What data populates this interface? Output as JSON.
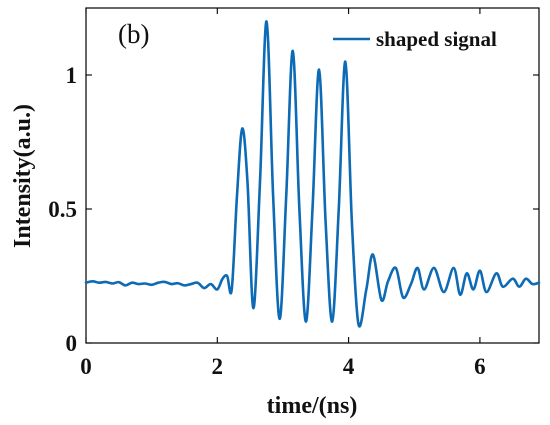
{
  "chart_data": {
    "type": "line",
    "panel_label": "(b)",
    "xlabel": "time/(ns)",
    "ylabel": "Intensity(a.u.)",
    "xlim": [
      0,
      6.9
    ],
    "ylim": [
      0,
      1.25
    ],
    "xticks": [
      0,
      2,
      4,
      6
    ],
    "yticks": [
      0,
      0.5,
      1
    ],
    "xtick_labels": [
      "0",
      "2",
      "4",
      "6"
    ],
    "ytick_labels": [
      "0",
      "0.5",
      "1"
    ],
    "grid": false,
    "legend_position": "top-right",
    "colors": {
      "series": "#0d6ab5",
      "axis": "#000000"
    },
    "series": [
      {
        "name": "shaped signal",
        "x": [
          0,
          0.1,
          0.2,
          0.3,
          0.4,
          0.5,
          0.6,
          0.7,
          0.8,
          0.9,
          1.0,
          1.1,
          1.2,
          1.3,
          1.4,
          1.5,
          1.6,
          1.7,
          1.8,
          1.9,
          2.0,
          2.08,
          2.15,
          2.22,
          2.3,
          2.38,
          2.46,
          2.55,
          2.65,
          2.75,
          2.85,
          2.95,
          3.05,
          3.15,
          3.25,
          3.35,
          3.45,
          3.55,
          3.65,
          3.75,
          3.85,
          3.95,
          4.05,
          4.15,
          4.27,
          4.37,
          4.5,
          4.6,
          4.72,
          4.83,
          4.95,
          5.05,
          5.15,
          5.3,
          5.45,
          5.6,
          5.7,
          5.8,
          5.9,
          6.0,
          6.1,
          6.25,
          6.35,
          6.5,
          6.6,
          6.7,
          6.8,
          6.9
        ],
        "y": [
          0.225,
          0.23,
          0.225,
          0.228,
          0.222,
          0.227,
          0.215,
          0.225,
          0.22,
          0.222,
          0.217,
          0.225,
          0.228,
          0.22,
          0.223,
          0.215,
          0.22,
          0.225,
          0.205,
          0.22,
          0.2,
          0.24,
          0.25,
          0.2,
          0.55,
          0.8,
          0.6,
          0.13,
          0.6,
          1.2,
          0.55,
          0.09,
          0.55,
          1.09,
          0.5,
          0.08,
          0.5,
          1.02,
          0.45,
          0.08,
          0.5,
          1.05,
          0.45,
          0.07,
          0.2,
          0.33,
          0.16,
          0.23,
          0.28,
          0.17,
          0.22,
          0.28,
          0.2,
          0.28,
          0.19,
          0.28,
          0.18,
          0.26,
          0.2,
          0.27,
          0.19,
          0.26,
          0.21,
          0.24,
          0.21,
          0.24,
          0.22,
          0.225
        ]
      }
    ]
  }
}
